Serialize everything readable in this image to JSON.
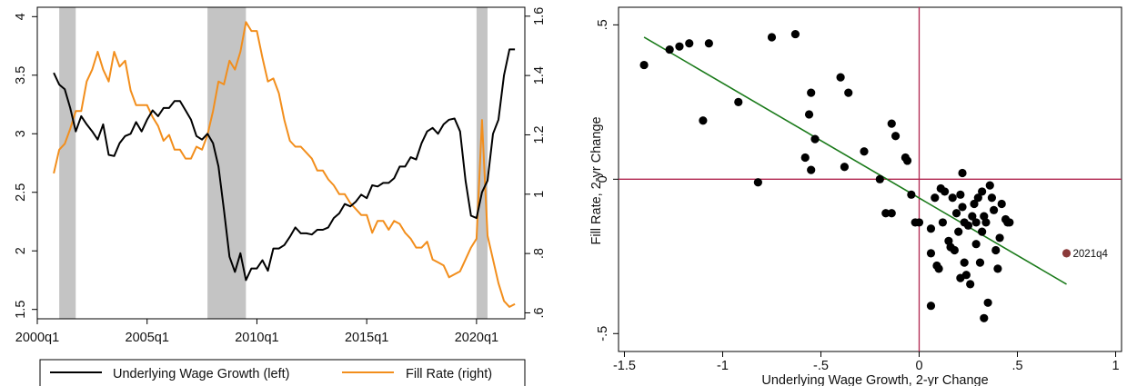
{
  "chart_data": [
    {
      "type": "line",
      "xlabel": "",
      "ylabel": "",
      "x_ticks": [
        "2000q1",
        "2005q1",
        "2010q1",
        "2015q1",
        "2020q1"
      ],
      "y_left_ticks": [
        "1.5",
        "2",
        "2.5",
        "3",
        "3.5",
        "4"
      ],
      "y_right_ticks": [
        ".6",
        ".8",
        "1",
        "1.2",
        "1.4",
        "1.6"
      ],
      "xlim": [
        2000,
        2022.2
      ],
      "ylim_left": [
        1.42,
        4.08
      ],
      "ylim_right": [
        0.58,
        1.63
      ],
      "recessions": [
        [
          2001.0,
          2001.75
        ],
        [
          2007.75,
          2009.5
        ],
        [
          2020.0,
          2020.5
        ]
      ],
      "colors": {
        "wage": "#000000",
        "fill": "#f28e1c",
        "recession": "#c4c4c4"
      },
      "legend_position": "bottom",
      "series": [
        {
          "name": "Underlying Wage Growth (left)",
          "axis": "left",
          "x": [
            2000.75,
            2001.0,
            2001.25,
            2001.5,
            2001.75,
            2002.0,
            2002.25,
            2002.5,
            2002.75,
            2003.0,
            2003.25,
            2003.5,
            2003.75,
            2004.0,
            2004.25,
            2004.5,
            2004.75,
            2005.0,
            2005.25,
            2005.5,
            2005.75,
            2006.0,
            2006.25,
            2006.5,
            2006.75,
            2007.0,
            2007.25,
            2007.5,
            2007.75,
            2008.0,
            2008.25,
            2008.5,
            2008.75,
            2009.0,
            2009.25,
            2009.5,
            2009.75,
            2010.0,
            2010.25,
            2010.5,
            2010.75,
            2011.0,
            2011.25,
            2011.5,
            2011.75,
            2012.0,
            2012.25,
            2012.5,
            2012.75,
            2013.0,
            2013.25,
            2013.5,
            2013.75,
            2014.0,
            2014.25,
            2014.5,
            2014.75,
            2015.0,
            2015.25,
            2015.5,
            2015.75,
            2016.0,
            2016.25,
            2016.5,
            2016.75,
            2017.0,
            2017.25,
            2017.5,
            2017.75,
            2018.0,
            2018.25,
            2018.5,
            2018.75,
            2019.0,
            2019.25,
            2019.5,
            2019.75,
            2020.0,
            2020.25,
            2020.5,
            2020.75,
            2021.0,
            2021.25,
            2021.5,
            2021.75
          ],
          "values": [
            3.52,
            3.42,
            3.38,
            3.22,
            3.02,
            3.15,
            3.08,
            3.02,
            2.95,
            3.08,
            2.82,
            2.81,
            2.92,
            2.98,
            3.0,
            3.1,
            3.02,
            3.12,
            3.2,
            3.15,
            3.22,
            3.22,
            3.28,
            3.28,
            3.2,
            3.12,
            2.98,
            2.95,
            3.0,
            2.92,
            2.72,
            2.35,
            1.95,
            1.82,
            1.98,
            1.75,
            1.85,
            1.85,
            1.92,
            1.83,
            2.02,
            2.02,
            2.05,
            2.12,
            2.2,
            2.15,
            2.15,
            2.14,
            2.18,
            2.18,
            2.2,
            2.28,
            2.32,
            2.4,
            2.38,
            2.42,
            2.48,
            2.45,
            2.56,
            2.55,
            2.58,
            2.58,
            2.62,
            2.72,
            2.72,
            2.8,
            2.78,
            2.92,
            3.02,
            3.05,
            3.0,
            3.08,
            3.12,
            3.13,
            3.02,
            2.6,
            2.3,
            2.28,
            2.5,
            2.6,
            3.0,
            3.12,
            3.5,
            3.72,
            3.72
          ]
        },
        {
          "name": "Fill Rate (right)",
          "axis": "right",
          "x": [
            2000.75,
            2001.0,
            2001.25,
            2001.5,
            2001.75,
            2002.0,
            2002.25,
            2002.5,
            2002.75,
            2003.0,
            2003.25,
            2003.5,
            2003.75,
            2004.0,
            2004.25,
            2004.5,
            2004.75,
            2005.0,
            2005.25,
            2005.5,
            2005.75,
            2006.0,
            2006.25,
            2006.5,
            2006.75,
            2007.0,
            2007.25,
            2007.5,
            2007.75,
            2008.0,
            2008.25,
            2008.5,
            2008.75,
            2009.0,
            2009.25,
            2009.5,
            2009.75,
            2010.0,
            2010.25,
            2010.5,
            2010.75,
            2011.0,
            2011.25,
            2011.5,
            2011.75,
            2012.0,
            2012.25,
            2012.5,
            2012.75,
            2013.0,
            2013.25,
            2013.5,
            2013.75,
            2014.0,
            2014.25,
            2014.5,
            2014.75,
            2015.0,
            2015.25,
            2015.5,
            2015.75,
            2016.0,
            2016.25,
            2016.5,
            2016.75,
            2017.0,
            2017.25,
            2017.5,
            2017.75,
            2018.0,
            2018.25,
            2018.5,
            2018.75,
            2019.0,
            2019.25,
            2019.5,
            2019.75,
            2020.0,
            2020.25,
            2020.5,
            2020.75,
            2021.0,
            2021.25,
            2021.5,
            2021.75
          ],
          "values": [
            1.07,
            1.15,
            1.17,
            1.22,
            1.28,
            1.28,
            1.38,
            1.42,
            1.48,
            1.42,
            1.38,
            1.48,
            1.43,
            1.45,
            1.35,
            1.3,
            1.3,
            1.3,
            1.26,
            1.23,
            1.18,
            1.2,
            1.15,
            1.15,
            1.12,
            1.12,
            1.16,
            1.15,
            1.2,
            1.28,
            1.38,
            1.37,
            1.45,
            1.42,
            1.48,
            1.58,
            1.55,
            1.55,
            1.46,
            1.38,
            1.39,
            1.34,
            1.25,
            1.18,
            1.16,
            1.16,
            1.14,
            1.12,
            1.08,
            1.08,
            1.05,
            1.03,
            1.0,
            1.0,
            0.97,
            0.95,
            0.93,
            0.93,
            0.87,
            0.91,
            0.91,
            0.88,
            0.91,
            0.9,
            0.87,
            0.85,
            0.82,
            0.82,
            0.84,
            0.78,
            0.77,
            0.76,
            0.72,
            0.73,
            0.74,
            0.78,
            0.82,
            0.85,
            1.25,
            0.86,
            0.78,
            0.7,
            0.64,
            0.62,
            0.63
          ]
        }
      ]
    },
    {
      "type": "scatter",
      "xlabel": "Underlying Wage Growth, 2-yr Change",
      "ylabel": "Fill Rate, 2-yr Change",
      "x_ticks": [
        "-1.5",
        "-1",
        "-.5",
        "0",
        ".5",
        "1"
      ],
      "y_ticks": [
        "-.5",
        "0",
        ".5"
      ],
      "xlim": [
        -1.53,
        1.03
      ],
      "ylim": [
        -0.558,
        0.557
      ],
      "colors": {
        "points": "#000000",
        "fit": "#1a7a1a",
        "zero_lines": "#b0254f",
        "highlight": "#8b3a3a"
      },
      "fit_line": {
        "x": [
          -1.4,
          0.75
        ],
        "y": [
          0.46,
          -0.34
        ]
      },
      "highlight": {
        "label": "2021q4",
        "x": 0.75,
        "y": -0.24
      },
      "points": [
        [
          -1.4,
          0.37
        ],
        [
          -1.27,
          0.42
        ],
        [
          -1.22,
          0.43
        ],
        [
          -1.17,
          0.44
        ],
        [
          -1.1,
          0.19
        ],
        [
          -1.07,
          0.44
        ],
        [
          -0.92,
          0.25
        ],
        [
          -0.82,
          -0.01
        ],
        [
          -0.75,
          0.46
        ],
        [
          -0.63,
          0.47
        ],
        [
          -0.58,
          0.07
        ],
        [
          -0.56,
          0.21
        ],
        [
          -0.55,
          0.28
        ],
        [
          -0.55,
          0.03
        ],
        [
          -0.53,
          0.13
        ],
        [
          -0.4,
          0.33
        ],
        [
          -0.38,
          0.04
        ],
        [
          -0.36,
          0.28
        ],
        [
          -0.28,
          0.09
        ],
        [
          -0.2,
          0.0
        ],
        [
          -0.17,
          -0.11
        ],
        [
          -0.14,
          -0.11
        ],
        [
          -0.14,
          0.18
        ],
        [
          -0.12,
          0.14
        ],
        [
          -0.07,
          0.07
        ],
        [
          -0.06,
          0.06
        ],
        [
          -0.04,
          -0.05
        ],
        [
          -0.02,
          -0.14
        ],
        [
          0.0,
          -0.14
        ],
        [
          0.06,
          -0.16
        ],
        [
          0.06,
          -0.24
        ],
        [
          0.06,
          -0.41
        ],
        [
          0.08,
          -0.06
        ],
        [
          0.09,
          -0.28
        ],
        [
          0.1,
          -0.29
        ],
        [
          0.11,
          -0.03
        ],
        [
          0.12,
          -0.14
        ],
        [
          0.13,
          -0.04
        ],
        [
          0.15,
          -0.2
        ],
        [
          0.16,
          -0.22
        ],
        [
          0.17,
          -0.06
        ],
        [
          0.18,
          -0.23
        ],
        [
          0.19,
          -0.11
        ],
        [
          0.2,
          -0.17
        ],
        [
          0.21,
          -0.05
        ],
        [
          0.21,
          -0.32
        ],
        [
          0.22,
          0.02
        ],
        [
          0.22,
          -0.09
        ],
        [
          0.23,
          -0.14
        ],
        [
          0.23,
          -0.27
        ],
        [
          0.24,
          -0.31
        ],
        [
          0.25,
          -0.15
        ],
        [
          0.26,
          -0.34
        ],
        [
          0.27,
          -0.12
        ],
        [
          0.28,
          -0.08
        ],
        [
          0.29,
          -0.14
        ],
        [
          0.29,
          -0.21
        ],
        [
          0.3,
          -0.06
        ],
        [
          0.31,
          -0.27
        ],
        [
          0.32,
          -0.17
        ],
        [
          0.32,
          -0.04
        ],
        [
          0.33,
          -0.45
        ],
        [
          0.33,
          -0.12
        ],
        [
          0.34,
          -0.14
        ],
        [
          0.35,
          -0.4
        ],
        [
          0.36,
          -0.02
        ],
        [
          0.37,
          -0.06
        ],
        [
          0.38,
          -0.1
        ],
        [
          0.39,
          -0.23
        ],
        [
          0.4,
          -0.29
        ],
        [
          0.41,
          -0.19
        ],
        [
          0.42,
          -0.08
        ],
        [
          0.44,
          -0.13
        ],
        [
          0.45,
          -0.14
        ],
        [
          0.46,
          -0.14
        ]
      ]
    }
  ]
}
